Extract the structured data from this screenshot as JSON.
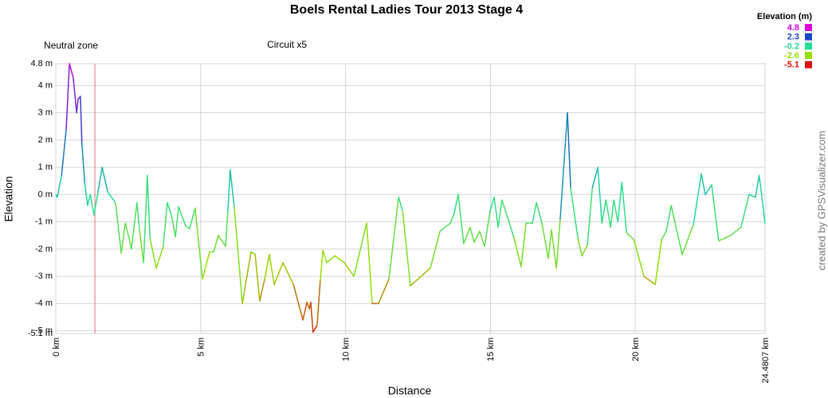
{
  "chart_data": {
    "type": "line",
    "title": "Boels Rental Ladies Tour 2013 Stage 4",
    "x_label": "Distance",
    "y_label": "Elevation",
    "credit": "created by GPSVisualizer.com",
    "annotations": [
      {
        "text": "Neutral zone",
        "x": 1.35,
        "line": true
      },
      {
        "text": "Circuit x5",
        "x": 7.98
      }
    ],
    "legend_title": "Elevation (m)",
    "color_scale": [
      {
        "value": 4.8,
        "color": "#dd00dd"
      },
      {
        "value": 2.3,
        "color": "#1a47c8"
      },
      {
        "value": -0.2,
        "color": "#22dd99"
      },
      {
        "value": -2.6,
        "color": "#99dd00"
      },
      {
        "value": -5.1,
        "color": "#dd1111"
      }
    ],
    "grid": true,
    "xlim": [
      0,
      24.4807
    ],
    "ylim": [
      -5.1,
      4.8
    ],
    "xticks": [
      {
        "value": 0,
        "label": "0 km"
      },
      {
        "value": 5,
        "label": "5 km"
      },
      {
        "value": 10,
        "label": "10 km"
      },
      {
        "value": 15,
        "label": "15 km"
      },
      {
        "value": 20,
        "label": "20 km"
      },
      {
        "value": 24.4807,
        "label": "24.4807 km"
      }
    ],
    "yticks": [
      {
        "value": 4.8,
        "label": "4.8 m"
      },
      {
        "value": 4,
        "label": "4 m"
      },
      {
        "value": 3,
        "label": "3 m"
      },
      {
        "value": 2,
        "label": "2 m"
      },
      {
        "value": 1,
        "label": "1 m"
      },
      {
        "value": 0,
        "label": "0 m"
      },
      {
        "value": -1,
        "label": "-1 m"
      },
      {
        "value": -2,
        "label": "-2 m"
      },
      {
        "value": -3,
        "label": "-3 m"
      },
      {
        "value": -4,
        "label": "-4 m"
      },
      {
        "value": -5,
        "label": "-5 m"
      },
      {
        "value": -5.1,
        "label": "-5.1 m"
      }
    ],
    "x": [
      0,
      0.05,
      0.2,
      0.36,
      0.47,
      0.6,
      0.72,
      0.77,
      0.85,
      0.9,
      1.0,
      1.1,
      1.19,
      1.32,
      1.46,
      1.6,
      1.79,
      2.06,
      2.26,
      2.4,
      2.53,
      2.61,
      2.8,
      2.89,
      3.03,
      3.16,
      3.25,
      3.47,
      3.71,
      3.85,
      3.99,
      4.13,
      4.24,
      4.48,
      4.62,
      4.81,
      5.06,
      5.31,
      5.45,
      5.61,
      5.86,
      5.94,
      6.02,
      6.16,
      6.44,
      6.74,
      6.88,
      7.04,
      7.21,
      7.37,
      7.54,
      7.84,
      8.2,
      8.53,
      8.67,
      8.75,
      8.8,
      8.88,
      9.02,
      9.13,
      9.22,
      9.35,
      9.63,
      9.96,
      10.29,
      10.73,
      10.92,
      11.14,
      11.5,
      11.83,
      11.97,
      12.24,
      12.93,
      13.26,
      13.62,
      13.75,
      13.89,
      14.08,
      14.3,
      14.44,
      14.63,
      14.8,
      14.99,
      15.13,
      15.27,
      15.4,
      15.82,
      16.06,
      16.23,
      16.45,
      16.59,
      16.78,
      17.0,
      17.11,
      17.28,
      17.41,
      17.66,
      17.77,
      18.02,
      18.16,
      18.35,
      18.52,
      18.71,
      18.85,
      18.99,
      19.15,
      19.26,
      19.4,
      19.54,
      19.7,
      19.95,
      20.3,
      20.69,
      20.91,
      21.07,
      21.24,
      21.62,
      22.01,
      22.28,
      22.42,
      22.64,
      22.88,
      23.3,
      23.65,
      23.93,
      24.15,
      24.28,
      24.48
    ],
    "values": [
      0,
      -0.1,
      0.7,
      2.4,
      4.8,
      4.3,
      3.0,
      3.5,
      3.6,
      1.9,
      0.4,
      -0.4,
      0,
      -0.75,
      0.1,
      1.0,
      0.1,
      -0.3,
      -2.15,
      -1.05,
      -1.6,
      -2.0,
      -0.3,
      -1.3,
      -2.5,
      0.7,
      -1.6,
      -2.7,
      -1.9,
      -0.3,
      -0.75,
      -1.55,
      -0.45,
      -1.15,
      -1.25,
      -0.5,
      -3.1,
      -2.1,
      -2.1,
      -1.5,
      -1.9,
      -0.6,
      0.9,
      -0.45,
      -4.0,
      -2.1,
      -2.2,
      -3.9,
      -3.1,
      -2.2,
      -3.3,
      -2.5,
      -3.3,
      -4.6,
      -3.95,
      -4.2,
      -3.95,
      -5.05,
      -4.8,
      -3.15,
      -2.05,
      -2.5,
      -2.25,
      -2.5,
      -3.0,
      -1.05,
      -4.0,
      -4.0,
      -3.1,
      -0.1,
      -0.6,
      -3.35,
      -2.7,
      -1.35,
      -1.05,
      -0.7,
      0.0,
      -1.8,
      -1.2,
      -1.75,
      -1.35,
      -1.9,
      -0.6,
      -0.1,
      -1.2,
      -0.2,
      -1.6,
      -2.65,
      -1.05,
      -1.05,
      -0.3,
      -1.05,
      -2.35,
      -1.3,
      -2.7,
      -0.9,
      3.0,
      0.25,
      -1.6,
      -2.25,
      -1.85,
      0.25,
      1.0,
      -1.05,
      -0.2,
      -1.2,
      -0.2,
      -1.0,
      0.45,
      -1.4,
      -1.65,
      -3.0,
      -3.3,
      -1.65,
      -1.35,
      -0.4,
      -2.2,
      -1.1,
      0.75,
      0.0,
      0.35,
      -1.7,
      -1.5,
      -1.2,
      0.0,
      -0.1,
      0.7,
      -1.05
    ]
  }
}
